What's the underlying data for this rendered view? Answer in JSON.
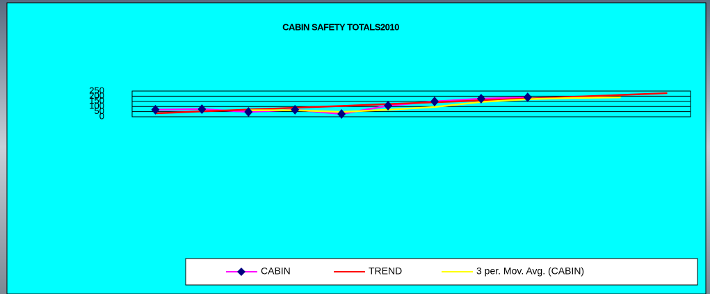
{
  "chart_data": {
    "type": "line",
    "title": "CABIN SAFETY TOTALS2010",
    "categories": [
      null,
      null,
      null,
      null,
      null,
      null,
      null,
      null,
      null,
      null,
      null,
      null
    ],
    "series": [
      {
        "name": "CABIN",
        "color": "#ff00ff",
        "marker_color": "#000080",
        "values": [
          68,
          74,
          47,
          68,
          27,
          108,
          149,
          176,
          189,
          null,
          null,
          null
        ]
      },
      {
        "name": "TREND",
        "color": "#ff0000",
        "values": [
          34,
          52,
          70,
          88,
          105,
          123,
          141,
          159,
          177,
          194,
          212,
          230
        ]
      },
      {
        "name": "3 per. Mov. Avg. (CABIN)",
        "color": "#ffff00",
        "values": [
          null,
          null,
          63,
          63,
          47,
          68,
          95,
          144,
          171,
          183,
          189,
          null
        ]
      }
    ],
    "ylim": [
      0,
      250
    ],
    "yticks": [
      0,
      50,
      100,
      150,
      200,
      250
    ],
    "grid": true,
    "legend": "bottom"
  }
}
